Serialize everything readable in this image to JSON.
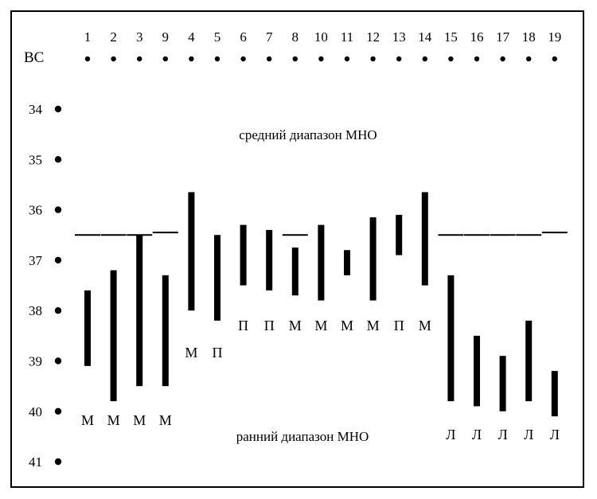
{
  "corner_label": "ВС",
  "zone_labels": {
    "middle": "средний диапазон МНО",
    "early": "ранний диапазон МНО"
  },
  "scale": [
    34,
    35,
    36,
    37,
    38,
    39,
    40,
    41
  ],
  "columns": [
    {
      "label": "1",
      "dash": 36.5,
      "bar": [
        37.6,
        39.1
      ],
      "letter": "М"
    },
    {
      "label": "2",
      "dash": 36.5,
      "bar": [
        37.2,
        39.8
      ],
      "letter": "М"
    },
    {
      "label": "3",
      "dash": 36.5,
      "bar": [
        36.5,
        39.5
      ],
      "letter": "М"
    },
    {
      "label": "9",
      "dash": 36.45,
      "bar": [
        37.3,
        39.5
      ],
      "letter": "М"
    },
    {
      "label": "4",
      "bar": [
        35.65,
        38.0
      ],
      "letter": "М"
    },
    {
      "label": "5",
      "bar": [
        36.5,
        38.2
      ],
      "letter": "П"
    },
    {
      "label": "6",
      "bar": [
        36.3,
        37.5
      ],
      "letter": "П"
    },
    {
      "label": "7",
      "bar": [
        36.4,
        37.6
      ],
      "letter": "П"
    },
    {
      "label": "8",
      "dash": 36.5,
      "bar": [
        36.75,
        37.7
      ],
      "letter": "М"
    },
    {
      "label": "10",
      "bar": [
        36.3,
        37.8
      ],
      "letter": "М"
    },
    {
      "label": "11",
      "bar": [
        36.8,
        37.3
      ],
      "letter": "М"
    },
    {
      "label": "12",
      "bar": [
        36.15,
        37.8
      ],
      "letter": "М"
    },
    {
      "label": "13",
      "bar": [
        36.1,
        36.9
      ],
      "letter": "П"
    },
    {
      "label": "14",
      "bar": [
        35.65,
        37.5
      ],
      "letter": "М"
    },
    {
      "label": "15",
      "dash": 36.5,
      "bar": [
        37.3,
        39.8
      ],
      "letter": "Л"
    },
    {
      "label": "16",
      "dash": 36.5,
      "bar": [
        38.5,
        39.9
      ],
      "letter": "Л"
    },
    {
      "label": "17",
      "dash": 36.5,
      "bar": [
        38.9,
        40.0
      ],
      "letter": "Л"
    },
    {
      "label": "18",
      "dash": 36.5,
      "bar": [
        38.2,
        39.8
      ],
      "letter": "Л"
    },
    {
      "label": "19",
      "dash": 36.45,
      "bar": [
        39.2,
        40.1
      ],
      "letter": "Л"
    }
  ]
}
